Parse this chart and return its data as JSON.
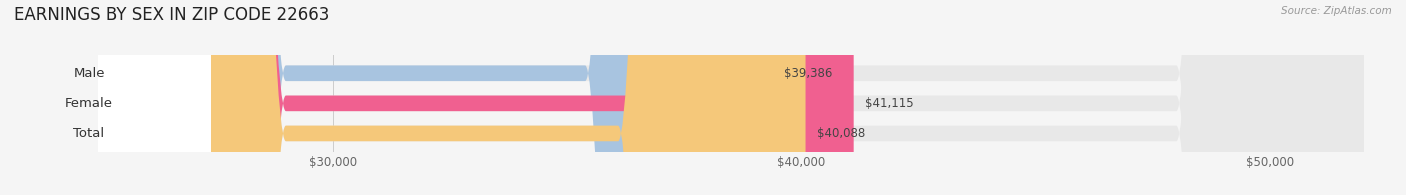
{
  "title": "EARNINGS BY SEX IN ZIP CODE 22663",
  "source": "Source: ZipAtlas.com",
  "categories": [
    "Male",
    "Female",
    "Total"
  ],
  "values": [
    39386,
    41115,
    40088
  ],
  "bar_colors": [
    "#a8c4e0",
    "#f06090",
    "#f5c87a"
  ],
  "value_labels": [
    "$39,386",
    "$41,115",
    "$40,088"
  ],
  "xlim": [
    25000,
    52000
  ],
  "xticks": [
    30000,
    40000,
    50000
  ],
  "xtick_labels": [
    "$30,000",
    "$40,000",
    "$50,000"
  ],
  "bar_height": 0.52,
  "background_color": "#f5f5f5",
  "bar_bg_color": "#e8e8e8",
  "title_fontsize": 12,
  "tick_fontsize": 8.5,
  "label_fontsize": 9.5,
  "value_fontsize": 8.5
}
